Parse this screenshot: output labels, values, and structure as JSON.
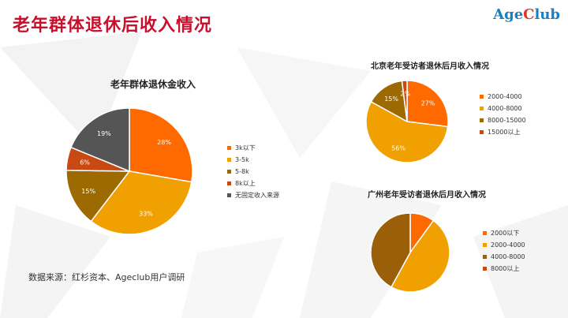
{
  "header": {
    "title": "老年群体退休后收入情况",
    "brand_prefix": "Age",
    "brand_c": "C",
    "brand_suffix": "lub"
  },
  "source_note": "数据来源：红杉资本、Ageclub用户调研",
  "colors": {
    "title_red": "#c8102e",
    "brand_blue": "#1a7fc1",
    "orange": "#ff6a00",
    "gold": "#f0a000",
    "olive": "#9c6a00",
    "rust": "#c84a12",
    "gray": "#555555",
    "dark_gold": "#9a5f08"
  },
  "chart_data": [
    {
      "type": "pie",
      "title": "老年群体退休金收入",
      "slices": [
        {
          "label": "3k以下",
          "value": 28,
          "text": "28%",
          "color": "#ff6a00"
        },
        {
          "label": "3-5k",
          "value": 33,
          "text": "33%",
          "color": "#f0a000"
        },
        {
          "label": "5-8k",
          "value": 15,
          "text": "15%",
          "color": "#9c6a00"
        },
        {
          "label": "8k以上",
          "value": 6,
          "text": "6%",
          "color": "#c84a12"
        },
        {
          "label": "无固定收入来源",
          "value": 19,
          "text": "19%",
          "color": "#555555"
        }
      ],
      "legend_placement": "right"
    },
    {
      "type": "pie",
      "title": "北京老年受访者退休后月收入情况",
      "slices": [
        {
          "label": "2000-4000",
          "value": 27,
          "text": "27%",
          "color": "#ff6a00"
        },
        {
          "label": "4000-8000",
          "value": 56,
          "text": "56%",
          "color": "#f0a000"
        },
        {
          "label": "8000-15000",
          "value": 15,
          "text": "15%",
          "color": "#9c6a00"
        },
        {
          "label": "15000以上",
          "value": 2,
          "text": "2%",
          "color": "#c84a12"
        }
      ],
      "legend_placement": "right"
    },
    {
      "type": "pie",
      "title": "广州老年受访者退休后月收入情况",
      "slices": [
        {
          "label": "2000以下",
          "value": 10,
          "text": "",
          "color": "#ff6a00"
        },
        {
          "label": "2000-4000",
          "value": 48,
          "text": "",
          "color": "#f0a000"
        },
        {
          "label": "4000-8000",
          "value": 42,
          "text": "",
          "color": "#9a5f08"
        },
        {
          "label": "8000以上",
          "value": 0,
          "text": "",
          "color": "#c84a12"
        }
      ],
      "legend_placement": "right"
    }
  ]
}
